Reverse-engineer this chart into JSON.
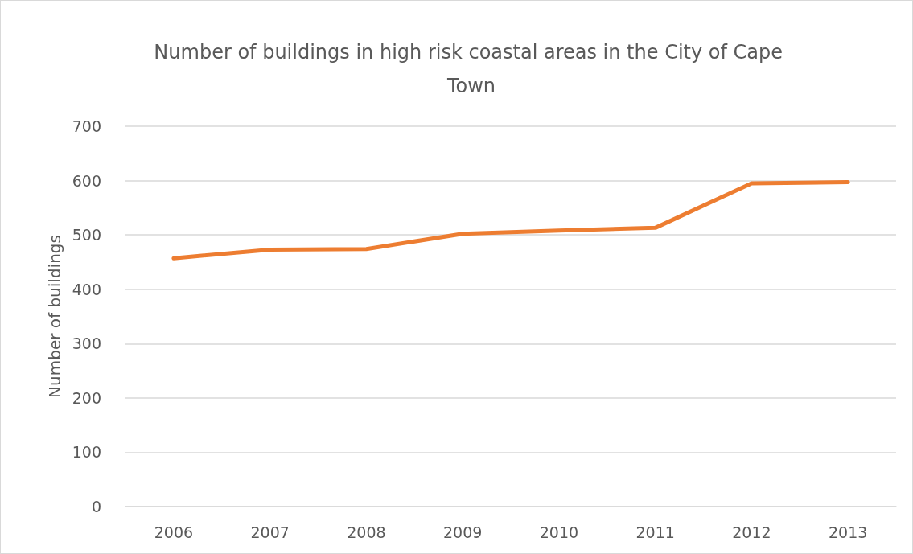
{
  "chart_data": {
    "type": "line",
    "title": "Number of buildings in high risk coastal areas in the City of Cape Town",
    "ylabel": "Number of buildings",
    "categories": [
      "2006",
      "2007",
      "2008",
      "2009",
      "2010",
      "2011",
      "2012",
      "2013"
    ],
    "series": [
      {
        "color": "#ed7d31",
        "values": [
          457,
          473,
          474,
          502,
          508,
          513,
          595,
          597
        ]
      }
    ],
    "ylim": [
      0,
      700
    ],
    "yticks": [
      0,
      100,
      200,
      300,
      400,
      500,
      600,
      700
    ],
    "grid": "y",
    "marker": "none",
    "line_style": "solid"
  }
}
